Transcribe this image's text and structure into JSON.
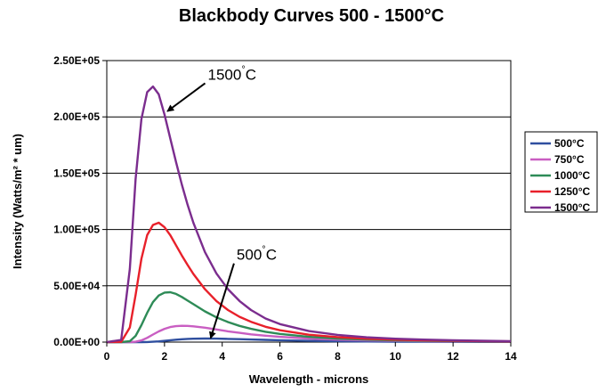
{
  "chart_data": {
    "type": "line",
    "title": "Blackbody Curves 500 - 1500°C",
    "xlabel": "Wavelength - microns",
    "ylabel": "Intensity (Watts/m² * um)",
    "xlim": [
      0,
      14
    ],
    "ylim": [
      0,
      250000
    ],
    "x_ticks": [
      0,
      2,
      4,
      6,
      8,
      10,
      12,
      14
    ],
    "x_tick_labels": [
      "0",
      "2",
      "4",
      "6",
      "8",
      "10",
      "12",
      "14"
    ],
    "y_ticks": [
      0,
      50000,
      100000,
      150000,
      200000,
      250000
    ],
    "y_tick_labels": [
      "0.00E+00",
      "5.00E+04",
      "1.00E+05",
      "1.50E+05",
      "2.00E+05",
      "2.50E+05"
    ],
    "grid": "horizontal",
    "legend_position": "right",
    "x": [
      0,
      0.5,
      0.8,
      1.0,
      1.2,
      1.4,
      1.6,
      1.8,
      2.0,
      2.2,
      2.4,
      2.6,
      2.8,
      3.0,
      3.4,
      3.8,
      4.2,
      4.6,
      5.0,
      5.5,
      6.0,
      7.0,
      8.0,
      9.0,
      10.0,
      11.0,
      12.0,
      13.0,
      14.0
    ],
    "series": [
      {
        "name": "500°C",
        "color": "#2f4f9f",
        "values": [
          0,
          0,
          0,
          1,
          10,
          80,
          290,
          650,
          1140,
          1660,
          2140,
          2540,
          2840,
          3040,
          3180,
          3100,
          2880,
          2600,
          2300,
          1940,
          1630,
          1140,
          800,
          570,
          410,
          300,
          220,
          170,
          130
        ]
      },
      {
        "name": "750°C",
        "color": "#c95ec2",
        "values": [
          0,
          0,
          20,
          300,
          1500,
          3800,
          6700,
          9500,
          11800,
          13400,
          14200,
          14500,
          14400,
          14000,
          12800,
          11200,
          9600,
          8200,
          6900,
          5700,
          4700,
          3200,
          2200,
          1600,
          1150,
          850,
          640,
          490,
          380
        ]
      },
      {
        "name": "1000°C",
        "color": "#2e8b57",
        "values": [
          0,
          0,
          800,
          5500,
          15000,
          26000,
          35500,
          41400,
          44000,
          44300,
          42800,
          40100,
          36900,
          33700,
          27300,
          22000,
          17800,
          14400,
          11800,
          9200,
          7300,
          4700,
          3200,
          2200,
          1600,
          1150,
          850,
          650,
          500
        ]
      },
      {
        "name": "1250°C",
        "color": "#e8202a",
        "values": [
          0,
          200,
          13000,
          42000,
          74000,
          95000,
          104000,
          106000,
          102000,
          95000,
          86000,
          77000,
          68500,
          60500,
          47000,
          36500,
          28500,
          22500,
          18000,
          13600,
          10500,
          6600,
          4400,
          3000,
          2100,
          1550,
          1150,
          870,
          670
        ]
      },
      {
        "name": "1500°C",
        "color": "#7b2d8e",
        "values": [
          0,
          2000,
          65000,
          145000,
          198000,
          222000,
          227000,
          220000,
          202000,
          181000,
          160000,
          140000,
          122000,
          106000,
          80000,
          61000,
          47000,
          36500,
          28500,
          21000,
          16000,
          9800,
          6400,
          4300,
          3000,
          2200,
          1600,
          1200,
          900
        ]
      }
    ],
    "annotations": [
      {
        "text": "1500",
        "unit": "C",
        "x": 3.5,
        "y": 233000,
        "arrow_to": [
          2.1,
          205000
        ]
      },
      {
        "text": "500",
        "unit": "C",
        "x": 4.5,
        "y": 73000,
        "arrow_to": [
          3.6,
          3500
        ]
      }
    ]
  }
}
